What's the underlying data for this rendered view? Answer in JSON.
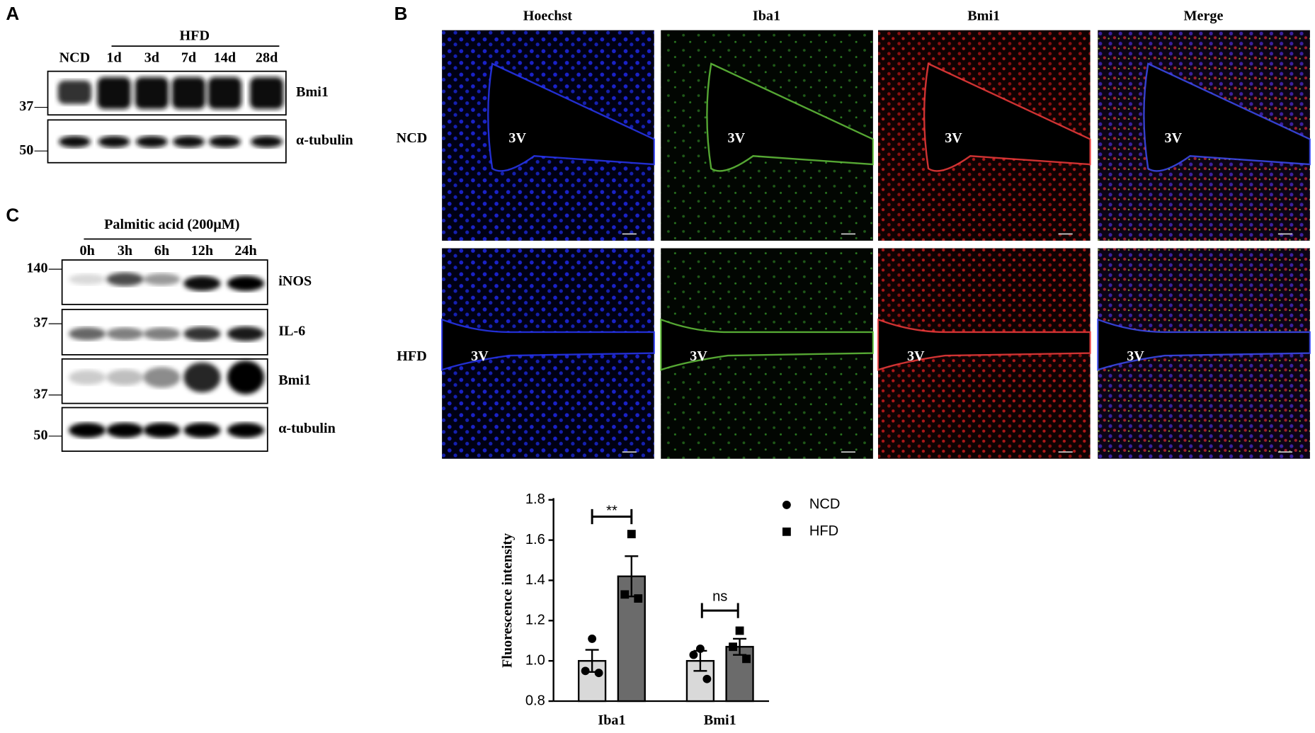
{
  "panelA": {
    "letter": "A",
    "group": "HFD",
    "lanes": [
      "NCD",
      "1d",
      "3d",
      "7d",
      "14d",
      "28d"
    ],
    "blots": [
      "Bmi1",
      "α-tubulin"
    ],
    "markers": [
      "37",
      "50"
    ]
  },
  "panelC": {
    "letter": "C",
    "treatment": "Palmitic acid (200μM)",
    "lanes": [
      "0h",
      "3h",
      "6h",
      "12h",
      "24h"
    ],
    "blots": [
      "iNOS",
      "IL-6",
      "Bmi1",
      "α-tubulin"
    ],
    "markers": [
      "140",
      "37",
      "37",
      "50"
    ]
  },
  "panelB": {
    "letter": "B",
    "columns": [
      "Hoechst",
      "Iba1",
      "Bmi1",
      "Merge"
    ],
    "rows": [
      "NCD",
      "HFD"
    ],
    "region": "3V"
  },
  "chart_data": {
    "type": "bar",
    "ylabel": "Fluorescence intensity",
    "categories": [
      "Iba1",
      "Bmi1"
    ],
    "series": [
      {
        "name": "NCD",
        "color": "#d9d9d9",
        "marker": "circle",
        "values": [
          1.0,
          1.0
        ],
        "errors": [
          0.055,
          0.05
        ],
        "points": [
          [
            1.11,
            0.95,
            0.94
          ],
          [
            1.06,
            1.03,
            0.91
          ]
        ]
      },
      {
        "name": "HFD",
        "color": "#6b6b6b",
        "marker": "square",
        "values": [
          1.42,
          1.07
        ],
        "errors": [
          0.1,
          0.04
        ],
        "points": [
          [
            1.63,
            1.33,
            1.31
          ],
          [
            1.15,
            1.07,
            1.01
          ]
        ]
      }
    ],
    "ylim": [
      0.8,
      1.8
    ],
    "yticks": [
      0.8,
      {
        "value": 1,
        "label": "1.0"
      },
      1.2,
      1.4,
      1.6,
      1.8
    ],
    "annotations": [
      "**",
      "ns"
    ]
  }
}
